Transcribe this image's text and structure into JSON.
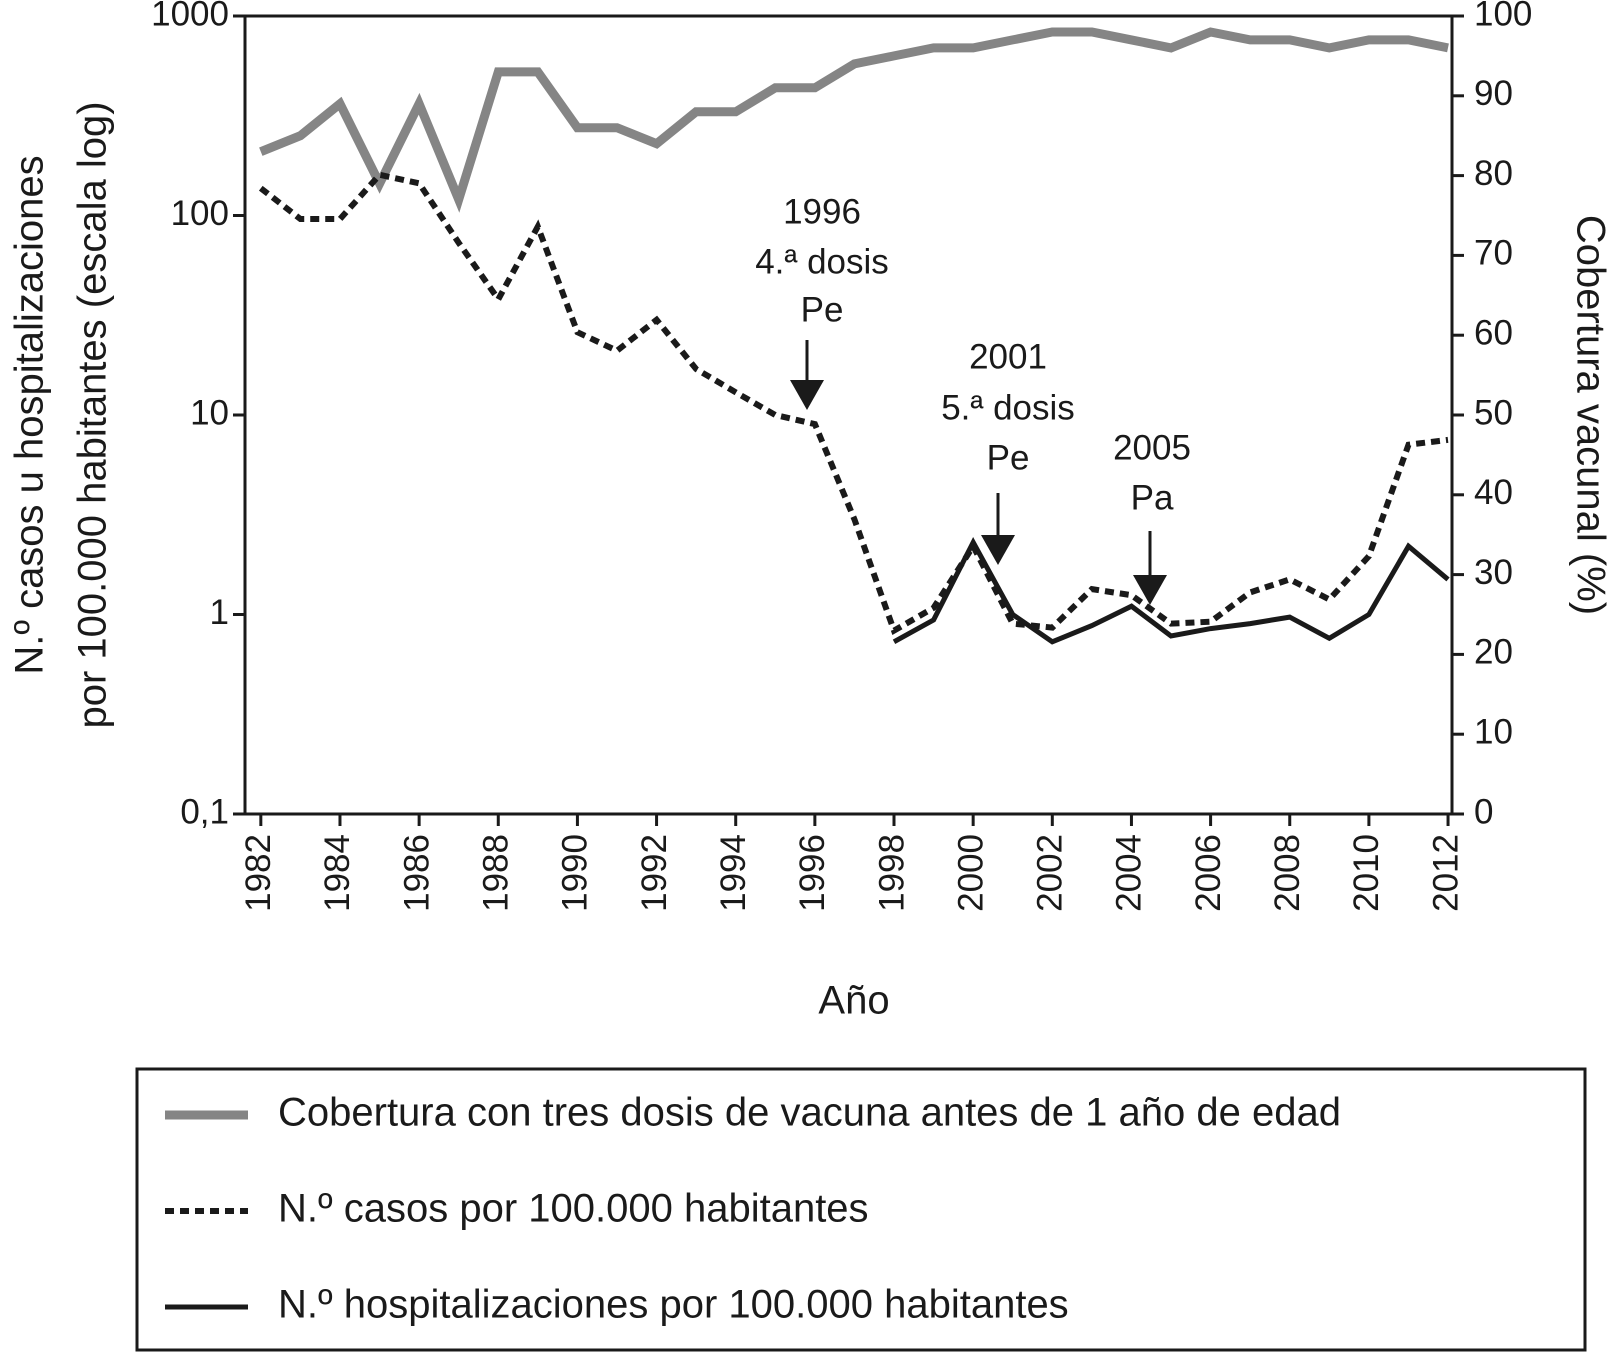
{
  "chart_data": {
    "type": "line",
    "x": [
      1982,
      1983,
      1984,
      1985,
      1986,
      1987,
      1988,
      1989,
      1990,
      1991,
      1992,
      1993,
      1994,
      1995,
      1996,
      1997,
      1998,
      1999,
      2000,
      2001,
      2002,
      2003,
      2004,
      2005,
      2006,
      2007,
      2008,
      2009,
      2010,
      2011,
      2012
    ],
    "xlim": [
      1981.6,
      2012.1
    ],
    "xticks": [
      1982,
      1984,
      1986,
      1988,
      1990,
      1992,
      1994,
      1996,
      1998,
      2000,
      2002,
      2004,
      2006,
      2008,
      2010,
      2012
    ],
    "xlabel": "Año",
    "ylabel": [
      "N.º casos u hospitalizaciones",
      "por 100.000 habitantes (escala log)"
    ],
    "y2label": "Cobertura vacunal (%)",
    "ylim": [
      0.1,
      1000
    ],
    "yscale": "log",
    "yticks": [
      {
        "value": 0.1,
        "label": "0,1"
      },
      1,
      10,
      100,
      1000
    ],
    "y2lim": [
      0,
      100
    ],
    "y2ticks": [
      0,
      10,
      20,
      30,
      40,
      50,
      60,
      70,
      80,
      90,
      100
    ],
    "series": [
      {
        "name": "Cobertura con tres dosis de vacuna antes de 1 año de edad",
        "color": "#858585",
        "dash": "solid",
        "axis": "y2",
        "values": [
          83,
          85,
          89,
          79,
          89,
          77,
          93,
          93,
          86,
          86,
          84,
          88,
          88,
          91,
          91,
          94,
          95,
          96,
          96,
          97,
          98,
          98,
          97,
          96,
          98,
          97,
          97,
          96,
          97,
          97,
          96
        ]
      },
      {
        "name": "N.º casos por 100.000 habitantes",
        "color": "#1a1a1a",
        "dash": "dotted",
        "values": [
          137,
          96,
          96,
          160,
          145,
          73,
          38,
          88,
          26,
          21,
          30,
          17,
          13,
          10,
          9,
          3,
          0.83,
          1.08,
          2.2,
          0.9,
          0.86,
          1.34,
          1.25,
          0.9,
          0.92,
          1.29,
          1.5,
          1.19,
          1.96,
          7.1,
          7.5
        ]
      },
      {
        "name": "N.º hospitalizaciones por 100.000 habitantes",
        "color": "#1a1a1a",
        "dash": "solid",
        "values": [
          null,
          null,
          null,
          null,
          null,
          null,
          null,
          null,
          null,
          null,
          null,
          null,
          null,
          null,
          null,
          null,
          0.73,
          0.94,
          2.3,
          1.0,
          0.73,
          0.88,
          1.1,
          0.78,
          0.85,
          0.9,
          0.97,
          0.76,
          1.0,
          2.2,
          1.5
        ]
      }
    ],
    "annotations": [
      {
        "lines": [
          "1996",
          "4.ª dosis",
          "Pe"
        ]
      },
      {
        "lines": [
          "2001",
          "5.ª dosis",
          "Pe"
        ]
      },
      {
        "lines": [
          "2005",
          "Pa"
        ]
      }
    ]
  }
}
